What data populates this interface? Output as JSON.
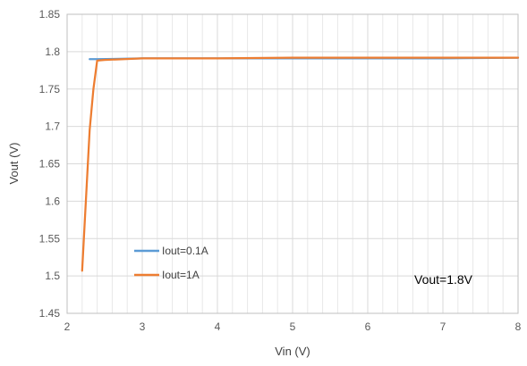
{
  "chart_data": {
    "type": "line",
    "title": "",
    "xlabel": "Vin (V)",
    "ylabel": "Vout (V)",
    "xlim": [
      2,
      8
    ],
    "ylim": [
      1.45,
      1.85
    ],
    "x_ticks": [
      "2",
      "3",
      "4",
      "5",
      "6",
      "7",
      "8"
    ],
    "y_ticks": [
      "1.45",
      "1.5",
      "1.55",
      "1.6",
      "1.65",
      "1.7",
      "1.75",
      "1.8",
      "1.85"
    ],
    "grid": true,
    "legend_position": "lower-left",
    "annotation": "Vout=1.8V",
    "series": [
      {
        "name": "Iout=0.1A",
        "color": "#5b9bd5",
        "x": [
          2.3,
          2.4,
          3,
          4,
          5,
          6,
          7,
          8
        ],
        "y": [
          1.79,
          1.79,
          1.791,
          1.791,
          1.791,
          1.791,
          1.791,
          1.792
        ]
      },
      {
        "name": "Iout=1A",
        "color": "#ed7d31",
        "x": [
          2.2,
          2.3,
          2.35,
          2.4,
          2.5,
          3,
          4,
          5,
          6,
          7,
          8
        ],
        "y": [
          1.507,
          1.695,
          1.75,
          1.788,
          1.789,
          1.791,
          1.791,
          1.792,
          1.792,
          1.792,
          1.792
        ]
      }
    ]
  }
}
